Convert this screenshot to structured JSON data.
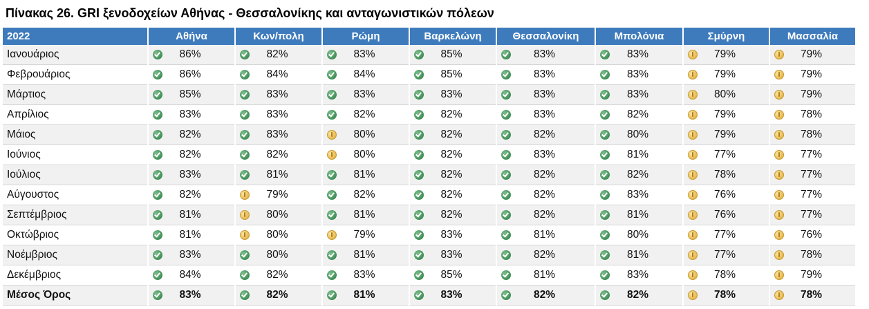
{
  "title": "Πίνακας 26. GRI ξενοδοχείων Αθήνας - Θεσσαλονίκης και ανταγωνιστικών πόλεων",
  "table": {
    "year_label": "2022",
    "columns": [
      "Αθήνα",
      "Κων/πολη",
      "Ρώμη",
      "Βαρκελώνη",
      "Θεσσαλονίκη",
      "Μπολόνια",
      "Σμύρνη",
      "Μασσαλία"
    ],
    "rows": [
      {
        "month": "Ιανουάριος",
        "values": [
          "86%",
          "82%",
          "83%",
          "85%",
          "83%",
          "83%",
          "79%",
          "79%"
        ],
        "icons": [
          "green",
          "green",
          "green",
          "green",
          "green",
          "green",
          "yellow",
          "yellow"
        ]
      },
      {
        "month": "Φεβρουάριος",
        "values": [
          "86%",
          "84%",
          "84%",
          "85%",
          "83%",
          "83%",
          "79%",
          "79%"
        ],
        "icons": [
          "green",
          "green",
          "green",
          "green",
          "green",
          "green",
          "yellow",
          "yellow"
        ]
      },
      {
        "month": "Μάρτιος",
        "values": [
          "85%",
          "83%",
          "83%",
          "83%",
          "83%",
          "83%",
          "80%",
          "79%"
        ],
        "icons": [
          "green",
          "green",
          "green",
          "green",
          "green",
          "green",
          "yellow",
          "yellow"
        ]
      },
      {
        "month": "Απρίλιος",
        "values": [
          "83%",
          "83%",
          "82%",
          "82%",
          "83%",
          "82%",
          "79%",
          "78%"
        ],
        "icons": [
          "green",
          "green",
          "green",
          "green",
          "green",
          "green",
          "yellow",
          "yellow"
        ]
      },
      {
        "month": "Μάιος",
        "values": [
          "82%",
          "83%",
          "80%",
          "82%",
          "82%",
          "80%",
          "79%",
          "78%"
        ],
        "icons": [
          "green",
          "green",
          "yellow",
          "green",
          "green",
          "green",
          "yellow",
          "yellow"
        ]
      },
      {
        "month": "Ιούνιος",
        "values": [
          "82%",
          "82%",
          "80%",
          "82%",
          "83%",
          "81%",
          "77%",
          "77%"
        ],
        "icons": [
          "green",
          "green",
          "yellow",
          "green",
          "green",
          "green",
          "yellow",
          "yellow"
        ]
      },
      {
        "month": "Ιούλιος",
        "values": [
          "83%",
          "81%",
          "81%",
          "82%",
          "82%",
          "82%",
          "78%",
          "77%"
        ],
        "icons": [
          "green",
          "green",
          "green",
          "green",
          "green",
          "green",
          "yellow",
          "yellow"
        ]
      },
      {
        "month": "Αύγουστος",
        "values": [
          "82%",
          "79%",
          "82%",
          "82%",
          "82%",
          "83%",
          "76%",
          "77%"
        ],
        "icons": [
          "green",
          "yellow",
          "green",
          "green",
          "green",
          "green",
          "yellow",
          "yellow"
        ]
      },
      {
        "month": "Σεπτέμβριος",
        "values": [
          "81%",
          "80%",
          "81%",
          "82%",
          "82%",
          "81%",
          "76%",
          "77%"
        ],
        "icons": [
          "green",
          "yellow",
          "green",
          "green",
          "green",
          "green",
          "yellow",
          "yellow"
        ]
      },
      {
        "month": "Οκτώβριος",
        "values": [
          "81%",
          "80%",
          "79%",
          "83%",
          "81%",
          "80%",
          "77%",
          "76%"
        ],
        "icons": [
          "green",
          "yellow",
          "yellow",
          "green",
          "green",
          "green",
          "yellow",
          "yellow"
        ]
      },
      {
        "month": "Νοέμβριος",
        "values": [
          "83%",
          "80%",
          "81%",
          "83%",
          "82%",
          "81%",
          "77%",
          "78%"
        ],
        "icons": [
          "green",
          "green",
          "green",
          "green",
          "green",
          "green",
          "yellow",
          "yellow"
        ]
      },
      {
        "month": "Δεκέμβριος",
        "values": [
          "84%",
          "82%",
          "83%",
          "85%",
          "81%",
          "83%",
          "78%",
          "79%"
        ],
        "icons": [
          "green",
          "green",
          "green",
          "green",
          "green",
          "green",
          "yellow",
          "yellow"
        ]
      }
    ],
    "average": {
      "label": "Μέσος Όρος",
      "values": [
        "83%",
        "82%",
        "81%",
        "83%",
        "82%",
        "82%",
        "78%",
        "78%"
      ],
      "icons": [
        "green",
        "green",
        "green",
        "green",
        "green",
        "green",
        "yellow",
        "yellow"
      ]
    }
  },
  "colors": {
    "header_bg": "#3e7bbd",
    "good_icon": "#3f8e56",
    "warn_icon": "#e7b94c"
  }
}
